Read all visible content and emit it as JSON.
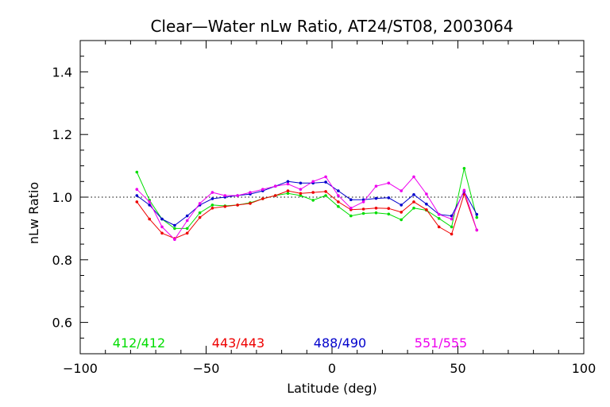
{
  "chart_data": {
    "type": "line",
    "title": "Clear—Water nLw Ratio, AT24/ST08, 2003064",
    "xlabel": "Latitude (deg)",
    "ylabel": "nLw Ratio",
    "xlim": [
      -100,
      100
    ],
    "ylim": [
      0.5,
      1.5
    ],
    "xticks": [
      -100,
      -50,
      0,
      50,
      100
    ],
    "xtick_labels": [
      "−100",
      "−50",
      "0",
      "50",
      "100"
    ],
    "yticks": [
      0.6,
      0.8,
      1.0,
      1.2,
      1.4
    ],
    "ytick_labels": [
      "0.6",
      "0.8",
      "1.0",
      "1.2",
      "1.4"
    ],
    "reference_line": 1.0,
    "grid": false,
    "legend_position": "bottom-inside",
    "x": [
      -77.5,
      -72.5,
      -67.5,
      -62.5,
      -57.5,
      -52.5,
      -47.5,
      -42.5,
      -37.5,
      -32.5,
      -27.5,
      -22.5,
      -17.5,
      -12.5,
      -7.5,
      -2.5,
      2.5,
      7.5,
      12.5,
      17.5,
      22.5,
      27.5,
      32.5,
      37.5,
      42.5,
      47.5,
      52.5,
      57.5
    ],
    "series": [
      {
        "name": "412/412",
        "color": "#00dd00",
        "values": [
          1.08,
          0.99,
          0.93,
          0.9,
          0.9,
          0.95,
          0.975,
          0.972,
          0.975,
          0.982,
          0.995,
          1.005,
          1.012,
          1.005,
          0.99,
          1.005,
          0.97,
          0.94,
          0.948,
          0.95,
          0.946,
          0.928,
          0.965,
          0.958,
          0.932,
          0.905,
          1.092,
          0.935
        ]
      },
      {
        "name": "443/443",
        "color": "#ee0000",
        "values": [
          0.985,
          0.93,
          0.885,
          0.868,
          0.885,
          0.935,
          0.965,
          0.97,
          0.975,
          0.98,
          0.995,
          1.005,
          1.02,
          1.012,
          1.015,
          1.018,
          0.985,
          0.96,
          0.962,
          0.965,
          0.964,
          0.952,
          0.985,
          0.96,
          0.905,
          0.882,
          1.01,
          0.895
        ]
      },
      {
        "name": "488/490",
        "color": "#0000cc",
        "values": [
          1.005,
          0.975,
          0.93,
          0.91,
          0.94,
          0.975,
          0.995,
          1.0,
          1.005,
          1.01,
          1.02,
          1.035,
          1.05,
          1.045,
          1.045,
          1.048,
          1.02,
          0.992,
          0.992,
          0.996,
          0.998,
          0.975,
          1.008,
          0.978,
          0.945,
          0.94,
          1.018,
          0.945
        ]
      },
      {
        "name": "551/555",
        "color": "#ee00ee",
        "values": [
          1.025,
          0.985,
          0.905,
          0.865,
          0.925,
          0.98,
          1.015,
          1.005,
          1.005,
          1.015,
          1.025,
          1.035,
          1.042,
          1.025,
          1.05,
          1.065,
          1.005,
          0.965,
          0.985,
          1.035,
          1.045,
          1.02,
          1.065,
          1.01,
          0.945,
          0.93,
          1.022,
          0.895
        ]
      }
    ]
  }
}
